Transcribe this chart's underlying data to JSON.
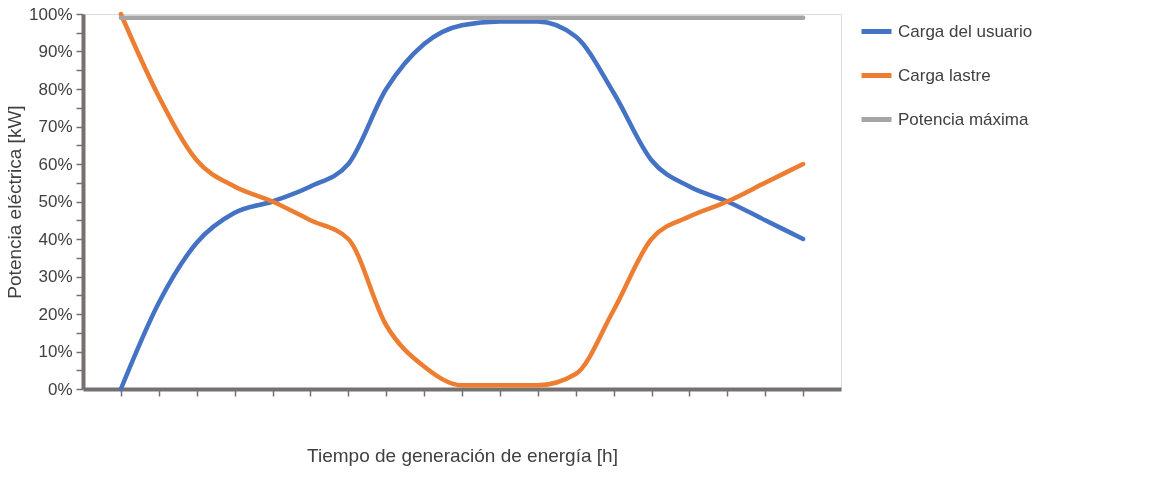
{
  "chart_data": {
    "type": "line",
    "xlabel": "Tiempo de generación de energía [h]",
    "ylabel": "Potencia eléctrica [kW]",
    "categories": [
      null,
      null,
      null,
      null,
      null,
      null,
      null,
      null,
      null,
      null,
      null,
      null,
      null,
      null,
      null,
      null,
      null,
      null,
      null
    ],
    "series": [
      {
        "name": "Carga del usuario",
        "color": "#4472c4",
        "values": [
          0,
          23,
          39,
          47,
          50,
          54,
          60,
          80,
          92,
          97,
          98,
          98,
          94,
          79,
          61,
          54,
          50,
          45,
          40
        ]
      },
      {
        "name": "Carga lastre",
        "color": "#ed7d31",
        "values": [
          100,
          78,
          61,
          54,
          50,
          45,
          40,
          17,
          6,
          1,
          1,
          1,
          4,
          21,
          40,
          46,
          50,
          55,
          60
        ]
      },
      {
        "name": "Potencia máxima",
        "color": "#a5a5a5",
        "values": [
          99,
          99,
          99,
          99,
          99,
          99,
          99,
          99,
          99,
          99,
          99,
          99,
          99,
          99,
          99,
          99,
          99,
          99,
          99
        ]
      }
    ],
    "ylim": [
      0,
      100
    ],
    "yticks": [
      {
        "value": 0,
        "label": "0%"
      },
      {
        "value": 5,
        "label": null
      },
      {
        "value": 10,
        "label": "10%"
      },
      {
        "value": 15,
        "label": null
      },
      {
        "value": 20,
        "label": "20%"
      },
      {
        "value": 25,
        "label": null
      },
      {
        "value": 30,
        "label": "30%"
      },
      {
        "value": 35,
        "label": null
      },
      {
        "value": 40,
        "label": "40%"
      },
      {
        "value": 45,
        "label": null
      },
      {
        "value": 50,
        "label": "50%"
      },
      {
        "value": 55,
        "label": null
      },
      {
        "value": 60,
        "label": "60%"
      },
      {
        "value": 65,
        "label": null
      },
      {
        "value": 70,
        "label": "70%"
      },
      {
        "value": 75,
        "label": null
      },
      {
        "value": 80,
        "label": "80%"
      },
      {
        "value": 85,
        "label": null
      },
      {
        "value": 90,
        "label": "90%"
      },
      {
        "value": 95,
        "label": null
      },
      {
        "value": 100,
        "label": "100%"
      }
    ],
    "grid": false,
    "legend": "right",
    "tick_labels": "y",
    "marker": "none",
    "line_style": "solid"
  }
}
